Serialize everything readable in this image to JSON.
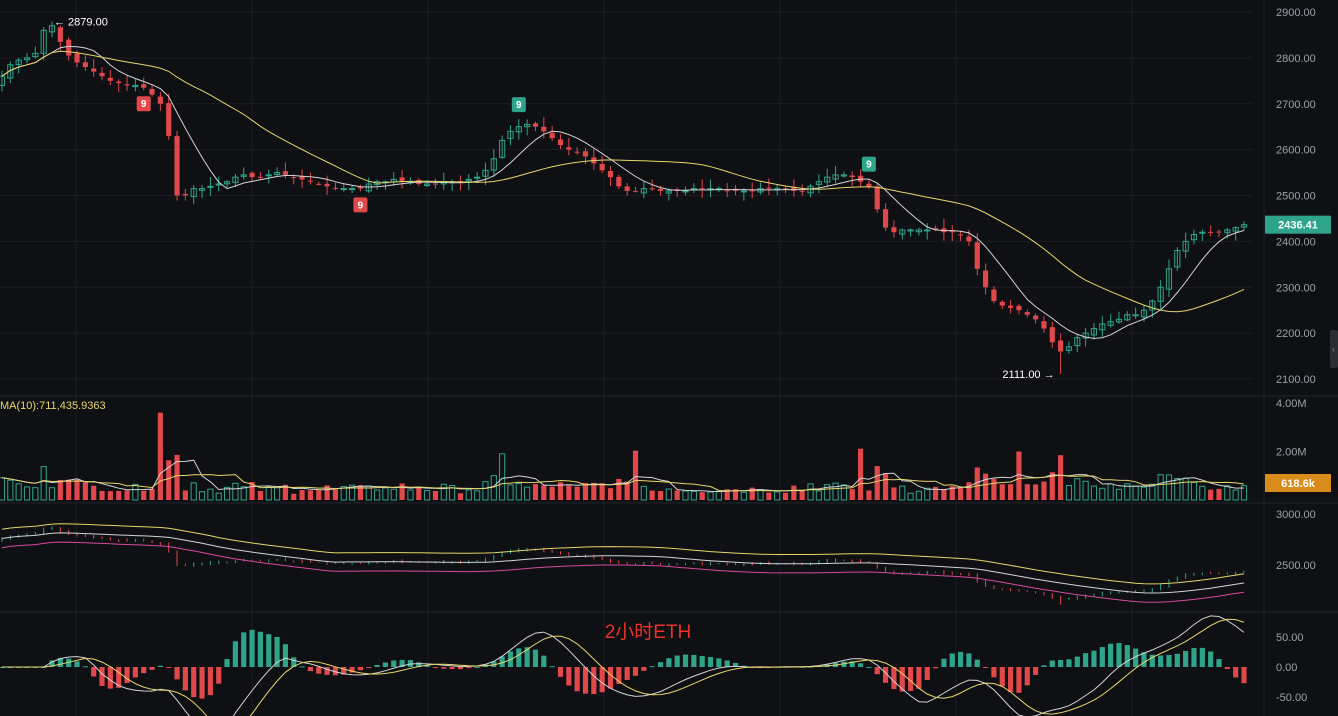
{
  "chart_title": "2小时ETH",
  "colors": {
    "background": "#0f1014",
    "up": "#2ea58b",
    "down": "#e0484a",
    "ma_fast": "#d4d4d4",
    "ma_slow": "#e8d66a",
    "ma_pink": "#d44aa0",
    "price_tag": "#2ea58b",
    "volume_tag": "#d98c1a"
  },
  "main": {
    "y_ticks": [
      "2900.00",
      "2800.00",
      "2700.00",
      "2600.00",
      "2500.00",
      "2400.00",
      "2300.00",
      "2200.00",
      "2100.00"
    ],
    "last_price": "2436.41",
    "high_label": "2879.00",
    "low_label": "2111.00",
    "td_marks": [
      {
        "text": "9",
        "kind": "down",
        "candle": 17
      },
      {
        "text": "9",
        "kind": "down",
        "candle": 43
      },
      {
        "text": "9",
        "kind": "up",
        "candle": 62
      },
      {
        "text": "9",
        "kind": "up",
        "candle": 104
      }
    ]
  },
  "volume": {
    "label": "MA(10):711,435.9363",
    "y_ticks": [
      "4.00M",
      "2.00M"
    ],
    "last_tag": "618.6k"
  },
  "boll": {
    "y_ticks": [
      "3000.00",
      "2500.00"
    ]
  },
  "macd": {
    "y_ticks": [
      "50.00",
      "0.00",
      "-50.00"
    ]
  },
  "chart_data": {
    "type": "candlestick",
    "title": "2小时ETH",
    "symbol": "ETH",
    "interval": "2h",
    "y_range": [
      2080,
      2920
    ],
    "high": 2879,
    "low": 2111,
    "last": 2436.41,
    "key_closes": [
      2760,
      2785,
      2795,
      2800,
      2810,
      2860,
      2870,
      2835,
      2805,
      2790,
      2780,
      2770,
      2760,
      2750,
      2745,
      2740,
      2740,
      2735,
      2720,
      2700,
      2630,
      2500,
      2500,
      2515,
      2515,
      2520,
      2525,
      2530,
      2540,
      2545,
      2540,
      2540,
      2545,
      2550,
      2545,
      2540,
      2535,
      2530,
      2525,
      2520,
      2515,
      2515,
      2515,
      2515,
      2525,
      2530,
      2530,
      2535,
      2530,
      2530,
      2525,
      2525,
      2525,
      2530,
      2530,
      2530,
      2535,
      2540,
      2555,
      2580,
      2620,
      2640,
      2650,
      2655,
      2650,
      2640,
      2625,
      2610,
      2600,
      2595,
      2585,
      2570,
      2555,
      2540,
      2520,
      2510,
      2510,
      2515,
      2515,
      2510,
      2510,
      2510,
      2510,
      2515,
      2515,
      2515,
      2515,
      2510,
      2510,
      2510,
      2510,
      2515,
      2515,
      2515,
      2515,
      2510,
      2510,
      2520,
      2530,
      2540,
      2545,
      2545,
      2540,
      2530,
      2520,
      2470,
      2430,
      2420,
      2425,
      2425,
      2425,
      2425,
      2425,
      2420,
      2420,
      2415,
      2400,
      2340,
      2300,
      2270,
      2260,
      2255,
      2250,
      2240,
      2230,
      2210,
      2180,
      2160,
      2170,
      2190,
      2200,
      2210,
      2220,
      2225,
      2230,
      2240,
      2240,
      2250,
      2270,
      2300,
      2340,
      2380,
      2400,
      2415,
      2420,
      2420,
      2420,
      2425,
      2430,
      2436.41
    ],
    "series": [
      {
        "name": "MA(10)",
        "source": "volume",
        "value": 711435.9363
      }
    ],
    "volume_last": "618.6k",
    "ylim": [
      2100,
      2900
    ]
  }
}
